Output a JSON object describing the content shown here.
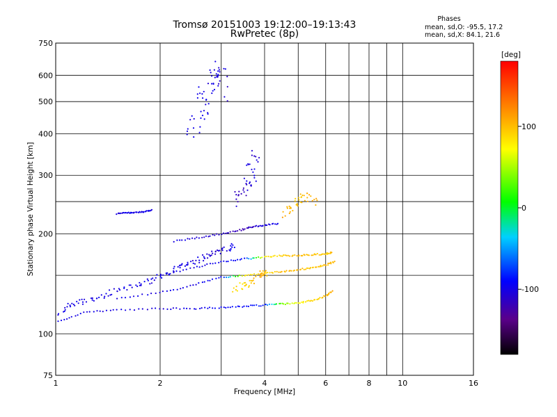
{
  "chart_data": {
    "type": "scatter",
    "title": "Tromsø 20151003 19:12:00–19:13:43",
    "subtitle": "RwPretec (8p)",
    "xlabel": "Frequency [MHz]",
    "ylabel": "Stationary phase Virtual Height [km]",
    "x_scale": "log",
    "y_scale": "log",
    "xlim": [
      1,
      16
    ],
    "ylim": [
      75,
      750
    ],
    "x_ticks": [
      1,
      2,
      4,
      6,
      8,
      10,
      16
    ],
    "x_tick_labels": [
      "1",
      "2",
      "4",
      "6",
      "8",
      "10",
      "16"
    ],
    "x_grid": [
      1,
      2,
      3,
      4,
      5,
      6,
      7,
      8,
      9,
      10,
      16
    ],
    "y_ticks": [
      75,
      100,
      200,
      300,
      400,
      500,
      600,
      750
    ],
    "y_tick_labels": [
      "75",
      "100",
      "200",
      "300",
      "400",
      "500",
      "600",
      "750"
    ],
    "y_grid": [
      100,
      150,
      200,
      250,
      300,
      400,
      500,
      600
    ],
    "grid": true,
    "stats": {
      "title": "Phases",
      "line_o": "mean, sd,O: -95.5, 17.2",
      "line_x": "mean, sd,X:  84.1, 21.6"
    },
    "colorbar": {
      "label": "[deg]",
      "range": [
        -180,
        180
      ],
      "ticks": [
        100,
        0,
        -100
      ],
      "tick_labels": [
        "100",
        "0",
        "-100"
      ]
    },
    "traces": [
      {
        "name": "o-trace-low",
        "x": [
          1.0,
          1.2,
          1.5,
          2.0,
          2.5,
          3.0,
          3.5,
          4.0,
          4.5,
          5.0,
          5.5,
          6.0,
          6.3
        ],
        "y": [
          108,
          116,
          118,
          119,
          119,
          120,
          121,
          122,
          123,
          124,
          126,
          130,
          135
        ],
        "phase": [
          -100,
          -100,
          -100,
          -105,
          -100,
          -95,
          -90,
          -85,
          40,
          70,
          90,
          100,
          110
        ],
        "spread": 2
      },
      {
        "name": "o-trace-mid",
        "x": [
          1.5,
          2.0,
          2.5,
          3.0,
          3.5,
          4.0,
          4.5,
          5.0,
          5.5,
          6.0,
          6.4
        ],
        "y": [
          128,
          133,
          140,
          148,
          150,
          152,
          154,
          156,
          158,
          161,
          165
        ],
        "phase": [
          -100,
          -100,
          -100,
          -95,
          80,
          90,
          100,
          100,
          95,
          100,
          100
        ],
        "spread": 2
      },
      {
        "name": "o-trace-upper",
        "x": [
          2.0,
          2.5,
          3.0,
          3.5,
          4.0,
          4.5,
          5.0,
          5.5,
          6.0,
          6.3
        ],
        "y": [
          150,
          158,
          165,
          168,
          170,
          172,
          172,
          173,
          174,
          176
        ],
        "phase": [
          -100,
          -100,
          -95,
          -90,
          80,
          95,
          100,
          100,
          95,
          100
        ],
        "spread": 2
      },
      {
        "name": "f1-trace",
        "x": [
          2.2,
          2.6,
          3.0,
          3.4,
          3.7,
          4.0,
          4.4
        ],
        "y": [
          190,
          195,
          200,
          205,
          210,
          212,
          215
        ],
        "phase": [
          -100,
          -105,
          -110,
          -120,
          -115,
          -100,
          -100
        ],
        "spread": 2
      },
      {
        "name": "e-layer-scatter",
        "x": [
          1.0,
          1.1,
          1.2,
          1.35,
          1.5,
          1.7,
          1.9,
          2.1,
          2.3,
          2.5,
          2.7,
          2.9,
          3.1,
          3.3
        ],
        "y": [
          112,
          122,
          125,
          130,
          135,
          140,
          145,
          152,
          160,
          165,
          170,
          175,
          180,
          185
        ],
        "phase": [
          -100,
          -100,
          -100,
          -100,
          -100,
          -100,
          -100,
          -100,
          -100,
          -105,
          -100,
          -110,
          -100,
          -90
        ],
        "spread": 8
      },
      {
        "name": "band-230",
        "x": [
          1.5,
          1.6,
          1.7,
          1.8,
          1.9
        ],
        "y": [
          230,
          231,
          232,
          233,
          236
        ],
        "phase": [
          -105,
          -100,
          -100,
          -100,
          -100
        ],
        "spread": 1.5
      },
      {
        "name": "f-layer-cluster-a",
        "x": [
          2.45,
          2.55,
          2.65,
          2.75,
          2.85,
          2.95,
          3.05
        ],
        "y": [
          400,
          450,
          500,
          550,
          600,
          640,
          500
        ],
        "phase": [
          -100,
          -100,
          -100,
          -100,
          -105,
          -100,
          -110
        ],
        "spread": 24
      },
      {
        "name": "f-layer-cluster-b",
        "x": [
          3.3,
          3.5,
          3.6,
          3.7,
          3.8
        ],
        "y": [
          250,
          270,
          290,
          320,
          360
        ],
        "phase": [
          -110,
          -120,
          -100,
          -100,
          -110
        ],
        "spread": 18
      },
      {
        "name": "x-scatter-high",
        "x": [
          4.5,
          4.8,
          5.0,
          5.3,
          5.6
        ],
        "y": [
          230,
          240,
          250,
          260,
          245
        ],
        "phase": [
          110,
          100,
          95,
          105,
          110
        ],
        "spread": 12
      },
      {
        "name": "x-scatter-mid",
        "x": [
          3.3,
          3.5,
          3.7,
          3.9,
          4.1
        ],
        "y": [
          135,
          140,
          145,
          150,
          155
        ],
        "phase": [
          90,
          80,
          100,
          110,
          95
        ],
        "spread": 10
      }
    ]
  }
}
